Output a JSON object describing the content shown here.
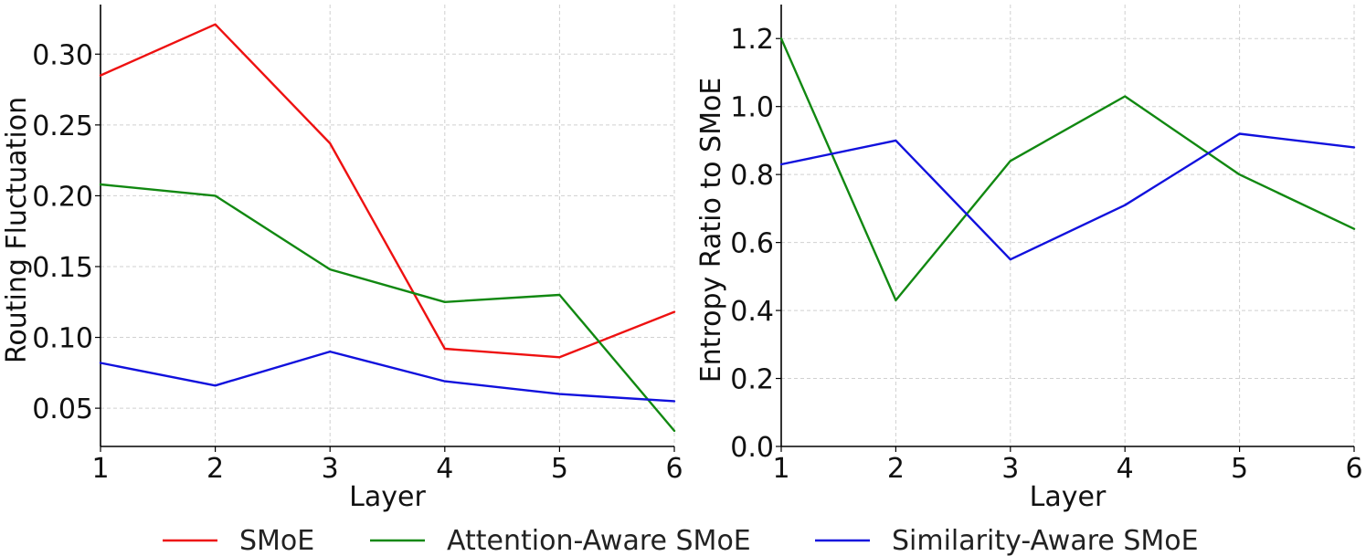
{
  "legend": [
    {
      "name": "SMoE",
      "color": "#ee1111"
    },
    {
      "name": "Attention-Aware SMoE",
      "color": "#118811"
    },
    {
      "name": "Similarity-Aware SMoE",
      "color": "#1111dd"
    }
  ],
  "chart_data": [
    {
      "type": "line",
      "title": "",
      "xlabel": "Layer",
      "ylabel": "Routing Fluctuation",
      "x": [
        1,
        2,
        3,
        4,
        5,
        6
      ],
      "xlim": [
        1,
        6
      ],
      "ylim": [
        0.023,
        0.335
      ],
      "xticks": [
        1,
        2,
        3,
        4,
        5,
        6
      ],
      "yticks": [
        0.05,
        0.1,
        0.15,
        0.2,
        0.25,
        0.3
      ],
      "ytick_labels": [
        "0.05",
        "0.10",
        "0.15",
        "0.20",
        "0.25",
        "0.30"
      ],
      "grid": true,
      "series": [
        {
          "name": "SMoE",
          "color": "#ee1111",
          "values": [
            0.285,
            0.321,
            0.237,
            0.092,
            0.086,
            0.118
          ]
        },
        {
          "name": "Attention-Aware SMoE",
          "color": "#118811",
          "values": [
            0.208,
            0.2,
            0.148,
            0.125,
            0.13,
            0.034
          ]
        },
        {
          "name": "Similarity-Aware SMoE",
          "color": "#1111dd",
          "values": [
            0.082,
            0.066,
            0.09,
            0.069,
            0.06,
            0.055
          ]
        }
      ]
    },
    {
      "type": "line",
      "title": "",
      "xlabel": "Layer",
      "ylabel": "Entropy Ratio to SMoE",
      "x": [
        1,
        2,
        3,
        4,
        5,
        6
      ],
      "xlim": [
        1,
        6
      ],
      "ylim": [
        0.0,
        1.3
      ],
      "xticks": [
        1,
        2,
        3,
        4,
        5,
        6
      ],
      "yticks": [
        0.0,
        0.2,
        0.4,
        0.6,
        0.8,
        1.0,
        1.2
      ],
      "ytick_labels": [
        "0.0",
        "0.2",
        "0.4",
        "0.6",
        "0.8",
        "1.0",
        "1.2"
      ],
      "grid": true,
      "series": [
        {
          "name": "Attention-Aware SMoE",
          "color": "#118811",
          "values": [
            1.2,
            0.43,
            0.84,
            1.03,
            0.8,
            0.64
          ]
        },
        {
          "name": "Similarity-Aware SMoE",
          "color": "#1111dd",
          "values": [
            0.83,
            0.9,
            0.55,
            0.71,
            0.92,
            0.88
          ]
        }
      ]
    }
  ]
}
